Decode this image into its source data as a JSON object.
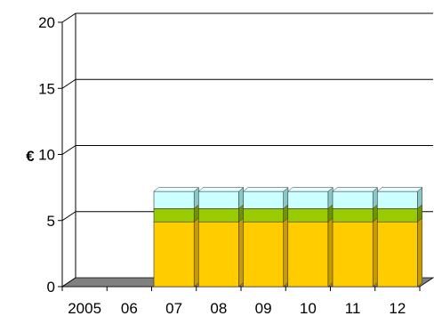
{
  "chart_data": {
    "type": "bar",
    "title": "",
    "xlabel": "",
    "ylabel": "€",
    "ylim": [
      0,
      20
    ],
    "y_ticks": [
      0,
      5,
      10,
      15,
      20
    ],
    "grid": true,
    "stacked": true,
    "three_d": true,
    "categories": [
      "2005",
      "06",
      "07",
      "08",
      "09",
      "10",
      "11",
      "12"
    ],
    "series": [
      {
        "values": [
          0,
          0,
          4.9,
          4.9,
          4.9,
          4.9,
          4.9,
          4.9
        ]
      },
      {
        "values": [
          0,
          0,
          1.0,
          1.0,
          1.0,
          1.0,
          1.0,
          1.0
        ]
      },
      {
        "values": [
          0,
          0,
          1.3,
          1.3,
          1.3,
          1.3,
          1.3,
          1.3
        ]
      }
    ],
    "colors": {
      "series": [
        "#ffcc00",
        "#99cc00",
        "#ccffff"
      ],
      "series_top": [
        "#ffe066",
        "#bfe066",
        "#e6ffff"
      ],
      "series_side": [
        "#c89b00",
        "#6f9400",
        "#88c8c8"
      ],
      "floor": "#808080",
      "floor_dark": "#555555",
      "wall_line": "#000000"
    }
  }
}
